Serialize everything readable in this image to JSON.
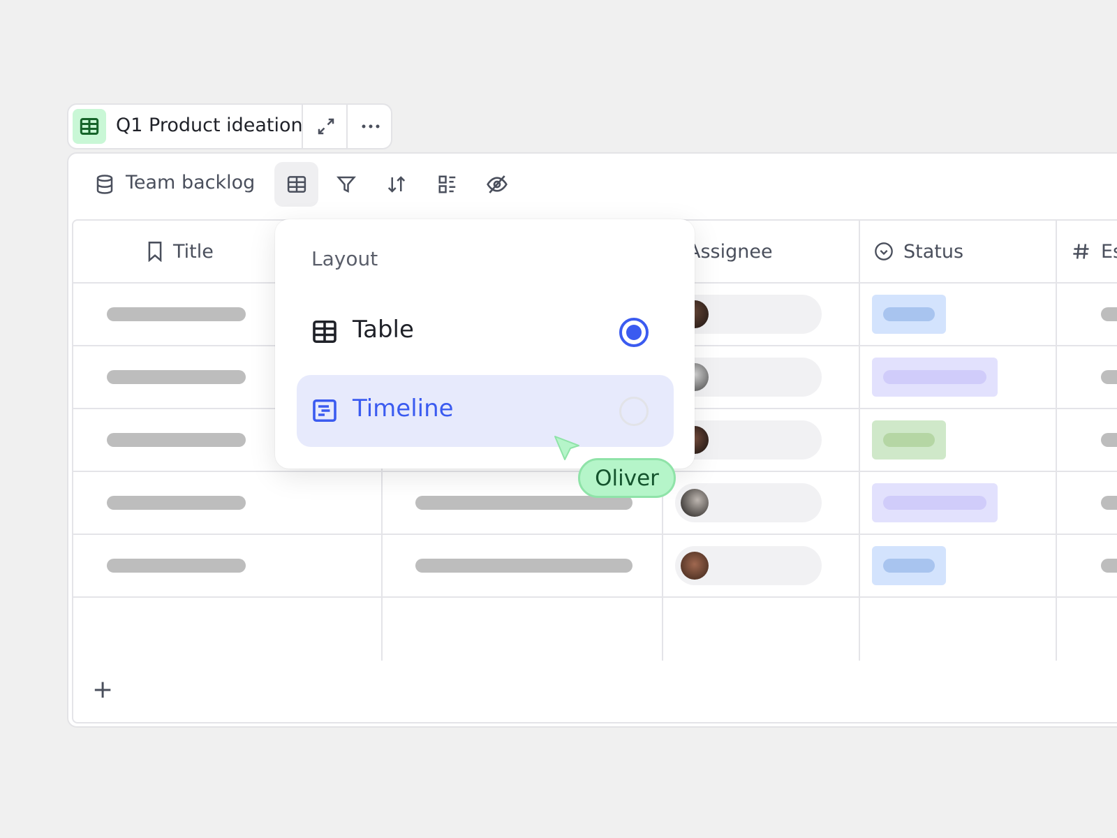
{
  "tab": {
    "title": "Q1 Product ideation",
    "icon": "table-icon",
    "expand_icon": "expand-icon",
    "more_icon": "more-icon"
  },
  "toolbar": {
    "source_icon": "database-icon",
    "source_label": "Team backlog",
    "buttons": [
      "table-layout",
      "filter",
      "sort",
      "group",
      "hide-fields"
    ]
  },
  "table": {
    "columns": [
      {
        "icon": "bookmark-icon",
        "label": "Title"
      },
      {
        "icon": "",
        "label": ""
      },
      {
        "icon": "",
        "label": "Assignee"
      },
      {
        "icon": "status-icon",
        "label": "Status"
      },
      {
        "icon": "hash-icon",
        "label": "Es"
      }
    ],
    "rows": [
      {
        "status_color": "#d3e3fd",
        "status_bar": "#a8c4ef",
        "status_wide": false
      },
      {
        "status_color": "#e2e1fd",
        "status_bar": "#d0ccfa",
        "status_wide": true
      },
      {
        "status_color": "#cfe8c9",
        "status_bar": "#b5d6a4",
        "status_wide": false
      },
      {
        "status_color": "#e2e1fd",
        "status_bar": "#d0ccfa",
        "status_wide": true
      },
      {
        "status_color": "#d3e3fd",
        "status_bar": "#a8c4ef",
        "status_wide": false
      }
    ],
    "add_label": "+"
  },
  "layout_menu": {
    "heading": "Layout",
    "options": [
      {
        "label": "Table",
        "icon": "table-icon",
        "selected": true
      },
      {
        "label": "Timeline",
        "icon": "timeline-icon",
        "selected": false,
        "hovered": true
      }
    ]
  },
  "cursor": {
    "user": "Oliver",
    "color": "#b5f5c9"
  },
  "colors": {
    "accent": "#3b5bf0",
    "background": "#f0f0f0"
  }
}
